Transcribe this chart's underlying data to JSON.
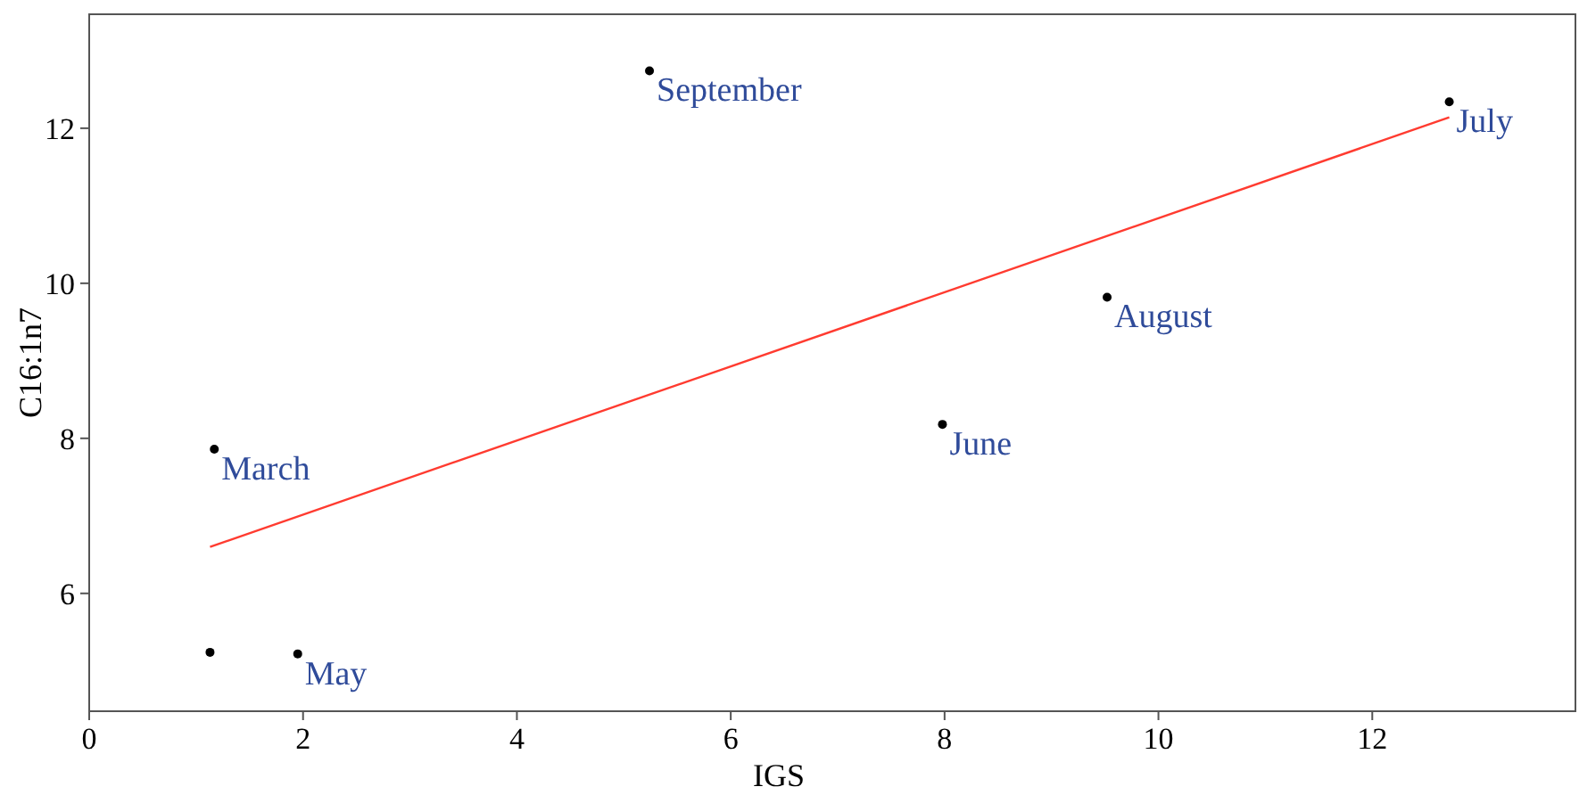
{
  "chart_data": {
    "type": "scatter",
    "xlabel": "IGS",
    "ylabel": "C16:1n7",
    "xlim": [
      0,
      13.9
    ],
    "ylim": [
      4.48,
      13.47
    ],
    "xticks": [
      0,
      2,
      4,
      6,
      8,
      10,
      12
    ],
    "yticks": [
      6,
      8,
      10,
      12
    ],
    "grid": false,
    "series": [
      {
        "marker": "circle",
        "color": "#000000",
        "x": [
          1.13,
          1.17,
          1.95,
          5.24,
          7.98,
          9.52,
          12.72
        ],
        "values": [
          5.24,
          7.86,
          5.22,
          12.74,
          8.18,
          9.82,
          12.34
        ]
      },
      {
        "type": "line",
        "color": "#ff3b30",
        "x": [
          1.13,
          12.72
        ],
        "values": [
          6.6,
          12.14
        ]
      }
    ],
    "annotations": [
      {
        "text": "March",
        "x": 1.17,
        "y": 7.86
      },
      {
        "text": "May",
        "x": 1.95,
        "y": 5.22
      },
      {
        "text": "September",
        "x": 5.24,
        "y": 12.74
      },
      {
        "text": "June",
        "x": 7.98,
        "y": 8.18
      },
      {
        "text": "August",
        "x": 9.52,
        "y": 9.82
      },
      {
        "text": "July",
        "x": 12.72,
        "y": 12.34
      }
    ]
  }
}
